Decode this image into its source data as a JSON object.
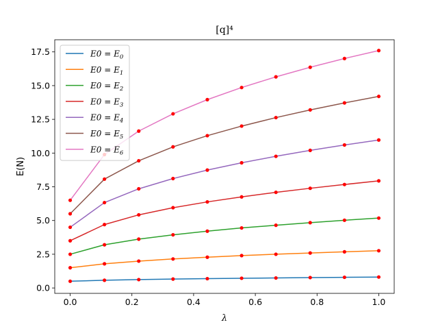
{
  "chart_data": {
    "type": "line",
    "title": "[q]⁴",
    "xlabel": "λ",
    "ylabel": "E(N)",
    "xlim": [
      -0.05,
      1.05
    ],
    "ylim": [
      -0.4,
      18.4
    ],
    "xticks": [
      0.0,
      0.2,
      0.4,
      0.6,
      0.8,
      1.0
    ],
    "xtick_labels": [
      "0.0",
      "0.2",
      "0.4",
      "0.6",
      "0.8",
      "1.0"
    ],
    "yticks": [
      0.0,
      2.5,
      5.0,
      7.5,
      10.0,
      12.5,
      15.0,
      17.5
    ],
    "ytick_labels": [
      "0.0",
      "2.5",
      "5.0",
      "7.5",
      "10.0",
      "12.5",
      "15.0",
      "17.5"
    ],
    "grid": false,
    "legend_position": "top-left",
    "marker_color": "#ff0000",
    "x": [
      0.0,
      0.1111,
      0.2222,
      0.3333,
      0.4444,
      0.5556,
      0.6667,
      0.7778,
      0.8889,
      1.0
    ],
    "series": [
      {
        "name": "E0 = E",
        "subscript": "0",
        "color": "#1f77b4",
        "values": [
          0.5,
          0.57,
          0.62,
          0.66,
          0.69,
          0.72,
          0.74,
          0.77,
          0.79,
          0.81
        ]
      },
      {
        "name": "E0 = E",
        "subscript": "1",
        "color": "#ff7f0e",
        "values": [
          1.5,
          1.79,
          1.99,
          2.15,
          2.28,
          2.4,
          2.5,
          2.59,
          2.68,
          2.76
        ]
      },
      {
        "name": "E0 = E",
        "subscript": "2",
        "color": "#2ca02c",
        "values": [
          2.5,
          3.2,
          3.62,
          3.94,
          4.21,
          4.45,
          4.65,
          4.84,
          5.02,
          5.18
        ]
      },
      {
        "name": "E0 = E",
        "subscript": "3",
        "color": "#d62728",
        "values": [
          3.5,
          4.7,
          5.42,
          5.95,
          6.38,
          6.75,
          7.09,
          7.39,
          7.67,
          7.94
        ]
      },
      {
        "name": "E0 = E",
        "subscript": "4",
        "color": "#9467bd",
        "values": [
          4.5,
          6.33,
          7.35,
          8.11,
          8.74,
          9.28,
          9.76,
          10.2,
          10.6,
          10.97
        ]
      },
      {
        "name": "E0 = E",
        "subscript": "5",
        "color": "#8c564b",
        "values": [
          5.5,
          8.07,
          9.43,
          10.46,
          11.29,
          12.0,
          12.63,
          13.2,
          13.72,
          14.2
        ]
      },
      {
        "name": "E0 = E",
        "subscript": "6",
        "color": "#e377c2",
        "values": [
          6.5,
          9.89,
          11.63,
          12.91,
          13.96,
          14.86,
          15.65,
          16.36,
          17.01,
          17.6
        ]
      }
    ]
  }
}
